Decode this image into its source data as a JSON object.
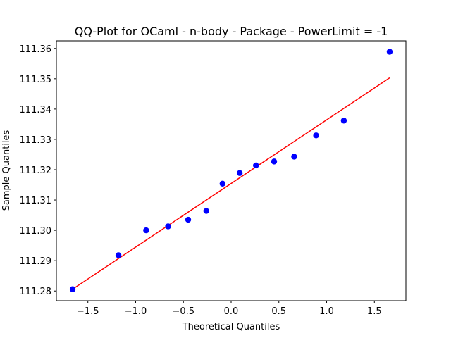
{
  "chart_data": {
    "type": "scatter",
    "title": "QQ-Plot for OCaml - n-body - Package - PowerLimit = -1",
    "xlabel": "Theoretical Quantiles",
    "ylabel": "Sample Quantiles",
    "xlim": [
      -1.83,
      1.83
    ],
    "ylim": [
      111.2768,
      111.3625
    ],
    "x_ticks": [
      -1.5,
      -1.0,
      -0.5,
      0.0,
      0.5,
      1.0,
      1.5
    ],
    "x_tick_labels": [
      "−1.5",
      "−1.0",
      "−0.5",
      "0.0",
      "0.5",
      "1.0",
      "1.5"
    ],
    "y_ticks": [
      111.28,
      111.29,
      111.3,
      111.31,
      111.32,
      111.33,
      111.34,
      111.35,
      111.36
    ],
    "y_tick_labels": [
      "111.28",
      "111.29",
      "111.30",
      "111.31",
      "111.32",
      "111.33",
      "111.34",
      "111.35",
      "111.36"
    ],
    "grid": false,
    "series": [
      {
        "kind": "points",
        "color": "#0000ff",
        "x": [
          -1.66,
          -1.18,
          -0.89,
          -0.66,
          -0.45,
          -0.26,
          -0.09,
          0.09,
          0.26,
          0.45,
          0.66,
          0.89,
          1.18,
          1.66
        ],
        "y": [
          111.2806,
          111.2918,
          111.3,
          111.3013,
          111.3035,
          111.3064,
          111.3154,
          111.3189,
          111.3214,
          111.3227,
          111.3243,
          111.3313,
          111.3362,
          111.3589
        ]
      },
      {
        "kind": "line",
        "color": "#ff0000",
        "x": [
          -1.66,
          1.66
        ],
        "y": [
          111.2806,
          111.3503
        ]
      }
    ]
  }
}
